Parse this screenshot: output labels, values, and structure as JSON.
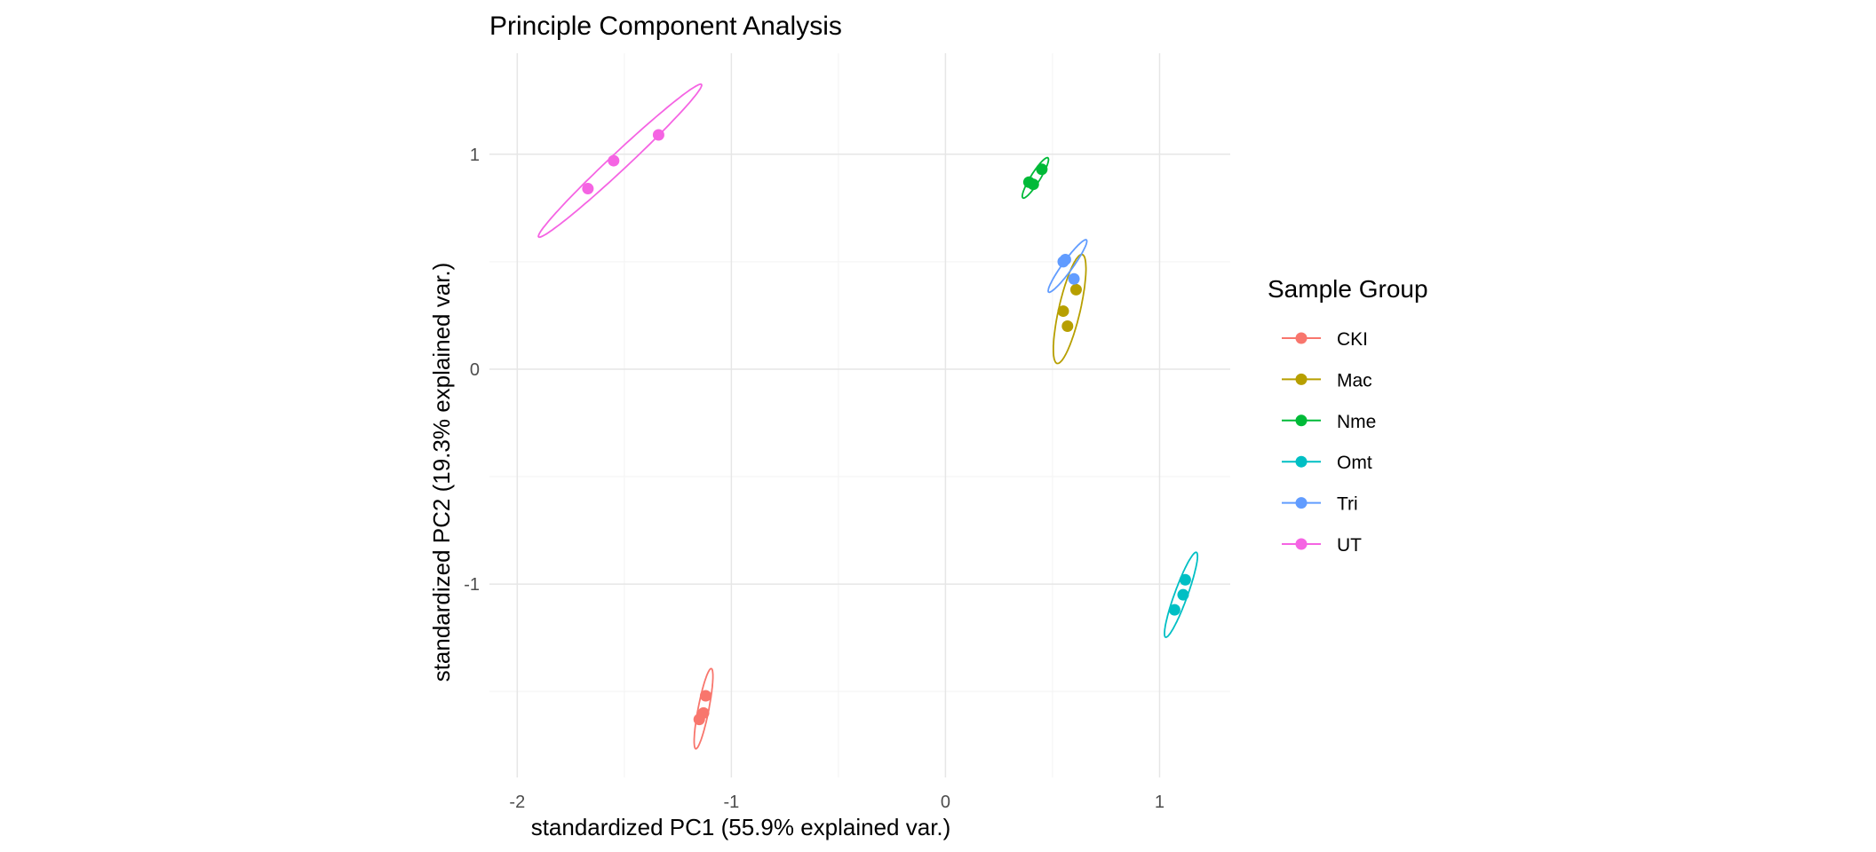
{
  "chart_data": {
    "type": "scatter",
    "title": "Principle Component Analysis",
    "xlabel": "standardized PC1 (55.9% explained var.)",
    "ylabel": "standardized PC2 (19.3% explained var.)",
    "xlim": [
      -2.13,
      1.33
    ],
    "ylim": [
      -1.9,
      1.47
    ],
    "x_ticks": [
      -2,
      -1,
      0,
      1
    ],
    "x_tick_labels": [
      "-2",
      "-1",
      "0",
      "1"
    ],
    "y_ticks": [
      -1,
      0,
      1
    ],
    "y_tick_labels": [
      "-1",
      "0",
      "1"
    ],
    "x_minor_grid": [
      -1.5,
      -0.5,
      0.5
    ],
    "y_minor_grid": [
      -1.5,
      -0.5,
      0.5
    ],
    "grid": true,
    "legend_title": "Sample Group",
    "legend_position": "right",
    "series": [
      {
        "name": "CKI",
        "color": "#F8766D",
        "points": [
          [
            -1.12,
            -1.52
          ],
          [
            -1.13,
            -1.6
          ],
          [
            -1.15,
            -1.63
          ]
        ],
        "ellipse": {
          "cx": -1.13,
          "cy": -1.58,
          "semi_major": 0.19,
          "semi_minor": 0.025,
          "angle_deg": 79
        }
      },
      {
        "name": "Mac",
        "color": "#B79F00",
        "points": [
          [
            0.61,
            0.37
          ],
          [
            0.55,
            0.27
          ],
          [
            0.57,
            0.2
          ]
        ],
        "ellipse": {
          "cx": 0.58,
          "cy": 0.28,
          "semi_major": 0.26,
          "semi_minor": 0.05,
          "angle_deg": 77
        }
      },
      {
        "name": "Nme",
        "color": "#00BA38",
        "points": [
          [
            0.45,
            0.93
          ],
          [
            0.39,
            0.87
          ],
          [
            0.41,
            0.86
          ]
        ],
        "ellipse": {
          "cx": 0.42,
          "cy": 0.89,
          "semi_major": 0.11,
          "semi_minor": 0.022,
          "angle_deg": 58
        }
      },
      {
        "name": "Omt",
        "color": "#00BFC4",
        "points": [
          [
            1.12,
            -0.98
          ],
          [
            1.11,
            -1.05
          ],
          [
            1.07,
            -1.12
          ]
        ],
        "ellipse": {
          "cx": 1.1,
          "cy": -1.05,
          "semi_major": 0.21,
          "semi_minor": 0.03,
          "angle_deg": 70
        }
      },
      {
        "name": "Tri",
        "color": "#619CFF",
        "points": [
          [
            0.56,
            0.51
          ],
          [
            0.55,
            0.5
          ],
          [
            0.6,
            0.42
          ]
        ],
        "ellipse": {
          "cx": 0.57,
          "cy": 0.48,
          "semi_major": 0.15,
          "semi_minor": 0.024,
          "angle_deg": 54
        }
      },
      {
        "name": "UT",
        "color": "#F564E3",
        "points": [
          [
            -1.34,
            1.09
          ],
          [
            -1.55,
            0.97
          ],
          [
            -1.67,
            0.84
          ]
        ],
        "ellipse": {
          "cx": -1.52,
          "cy": 0.97,
          "semi_major": 0.52,
          "semi_minor": 0.04,
          "angle_deg": 43
        }
      }
    ]
  }
}
